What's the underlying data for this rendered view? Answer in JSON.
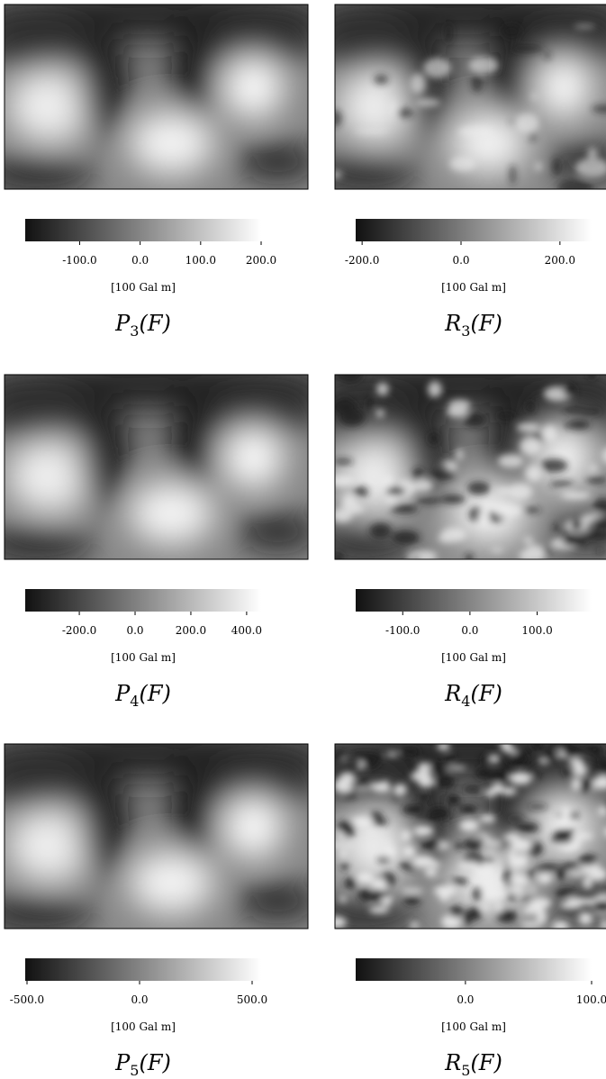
{
  "panels": [
    {
      "colorbar": {
        "range": [
          -190,
          200
        ],
        "ticks": [
          {
            "value": -100,
            "label": "-100.0"
          },
          {
            "value": 0,
            "label": "0.0"
          },
          {
            "value": 100,
            "label": "100.0"
          },
          {
            "value": 200,
            "label": "200.0"
          }
        ]
      },
      "unit": "[100 Gal m]",
      "caption": {
        "symbol": "P",
        "index": "3",
        "argument": "(F)"
      }
    },
    {
      "colorbar": {
        "range": [
          -213,
          264
        ],
        "ticks": [
          {
            "value": -200,
            "label": "-200.0"
          },
          {
            "value": 0,
            "label": "0.0"
          },
          {
            "value": 200,
            "label": "200.0"
          }
        ]
      },
      "unit": "[100 Gal m]",
      "caption": {
        "symbol": "R",
        "index": "3",
        "argument": "(F)"
      }
    },
    {
      "colorbar": {
        "range": [
          -394,
          452
        ],
        "ticks": [
          {
            "value": -200,
            "label": "-200.0"
          },
          {
            "value": 0,
            "label": "0.0"
          },
          {
            "value": 200,
            "label": "200.0"
          },
          {
            "value": 400,
            "label": "400.0"
          }
        ]
      },
      "unit": "[100 Gal m]",
      "caption": {
        "symbol": "P",
        "index": "4",
        "argument": "(F)"
      }
    },
    {
      "colorbar": {
        "range": [
          -170,
          181
        ],
        "ticks": [
          {
            "value": -100,
            "label": "-100.0"
          },
          {
            "value": 0,
            "label": "0.0"
          },
          {
            "value": 100,
            "label": "100.0"
          }
        ]
      },
      "unit": "[100 Gal m]",
      "caption": {
        "symbol": "R",
        "index": "4",
        "argument": "(F)"
      }
    },
    {
      "colorbar": {
        "range": [
          -508,
          540
        ],
        "ticks": [
          {
            "value": -500,
            "label": "-500.0"
          },
          {
            "value": 0,
            "label": "0.0"
          },
          {
            "value": 500,
            "label": "500.0"
          }
        ]
      },
      "unit": "[100 Gal m]",
      "caption": {
        "symbol": "P",
        "index": "5",
        "argument": "(F)"
      }
    },
    {
      "colorbar": {
        "range": [
          -87,
          100
        ],
        "ticks": [
          {
            "value": 0,
            "label": "0.0"
          },
          {
            "value": 100,
            "label": "100.0"
          }
        ]
      },
      "unit": "[100 Gal m]",
      "caption": {
        "symbol": "R",
        "index": "5",
        "argument": "(F)"
      }
    }
  ]
}
